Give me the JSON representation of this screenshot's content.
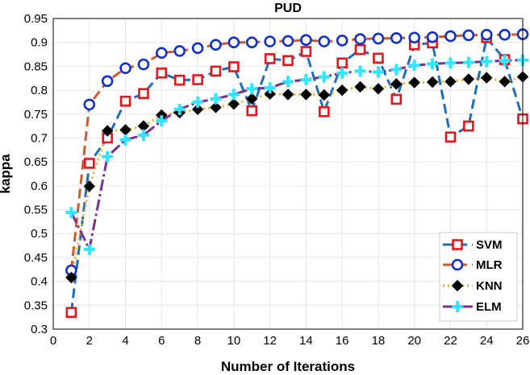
{
  "chart_data": {
    "type": "line",
    "title": "PUD",
    "xlabel": "Number of Iterations",
    "ylabel": "kappa",
    "xlim": [
      0,
      26
    ],
    "ylim": [
      0.3,
      0.95
    ],
    "xticks": [
      0,
      2,
      4,
      6,
      8,
      10,
      12,
      14,
      16,
      18,
      20,
      22,
      24,
      26
    ],
    "yticks": [
      0.3,
      0.35,
      0.4,
      0.45,
      0.5,
      0.55,
      0.6,
      0.65,
      0.7,
      0.75,
      0.8,
      0.85,
      0.9,
      0.95
    ],
    "xtick_labels": [
      "0",
      "2",
      "4",
      "6",
      "8",
      "10",
      "12",
      "14",
      "16",
      "18",
      "20",
      "22",
      "24",
      "26"
    ],
    "ytick_labels": [
      "0.3",
      "0.35",
      "0.4",
      "0.45",
      "0.5",
      "0.55",
      "0.6",
      "0.65",
      "0.7",
      "0.75",
      "0.8",
      "0.85",
      "0.9",
      "0.95"
    ],
    "grid": true,
    "legend_position": "bottom-right",
    "x": [
      1,
      2,
      3,
      4,
      5,
      6,
      7,
      8,
      9,
      10,
      11,
      12,
      13,
      14,
      15,
      16,
      17,
      18,
      19,
      20,
      21,
      22,
      23,
      24,
      25,
      26
    ],
    "series": [
      {
        "name": "SVM",
        "line_color": "#1f6fb5",
        "marker_color": "#e8141c",
        "marker": "square",
        "dash": "12,6",
        "values": [
          0.335,
          0.647,
          0.7,
          0.777,
          0.793,
          0.836,
          0.821,
          0.822,
          0.84,
          0.849,
          0.757,
          0.866,
          0.862,
          0.881,
          0.755,
          0.857,
          0.885,
          0.867,
          0.781,
          0.895,
          0.899,
          0.702,
          0.725,
          0.91,
          0.864,
          0.74
        ]
      },
      {
        "name": "MLR",
        "line_color": "#d15a2a",
        "marker_color": "#1030c8",
        "marker": "circle",
        "dash": "12,6",
        "values": [
          0.423,
          0.77,
          0.819,
          0.846,
          0.854,
          0.878,
          0.882,
          0.888,
          0.895,
          0.9,
          0.9,
          0.902,
          0.903,
          0.905,
          0.902,
          0.904,
          0.907,
          0.908,
          0.909,
          0.91,
          0.911,
          0.913,
          0.915,
          0.916,
          0.916,
          0.917
        ]
      },
      {
        "name": "KNN",
        "line_color": "#e8b020",
        "marker_color": "#000000",
        "marker": "diamond",
        "dash": "2,4",
        "values": [
          0.408,
          0.599,
          0.715,
          0.717,
          0.725,
          0.748,
          0.753,
          0.76,
          0.764,
          0.771,
          0.782,
          0.792,
          0.791,
          0.791,
          0.79,
          0.8,
          0.807,
          0.803,
          0.813,
          0.816,
          0.817,
          0.818,
          0.823,
          0.826,
          0.818,
          0.828
        ]
      },
      {
        "name": "ELM",
        "line_color": "#7a2e8e",
        "marker_color": "#2ee6ff",
        "marker": "plus",
        "dash": "14,4,3,4",
        "values": [
          0.544,
          0.467,
          0.661,
          0.696,
          0.706,
          0.736,
          0.76,
          0.775,
          0.782,
          0.791,
          0.803,
          0.805,
          0.818,
          0.822,
          0.828,
          0.836,
          0.84,
          0.838,
          0.843,
          0.852,
          0.855,
          0.857,
          0.858,
          0.86,
          0.862,
          0.863
        ]
      }
    ]
  }
}
